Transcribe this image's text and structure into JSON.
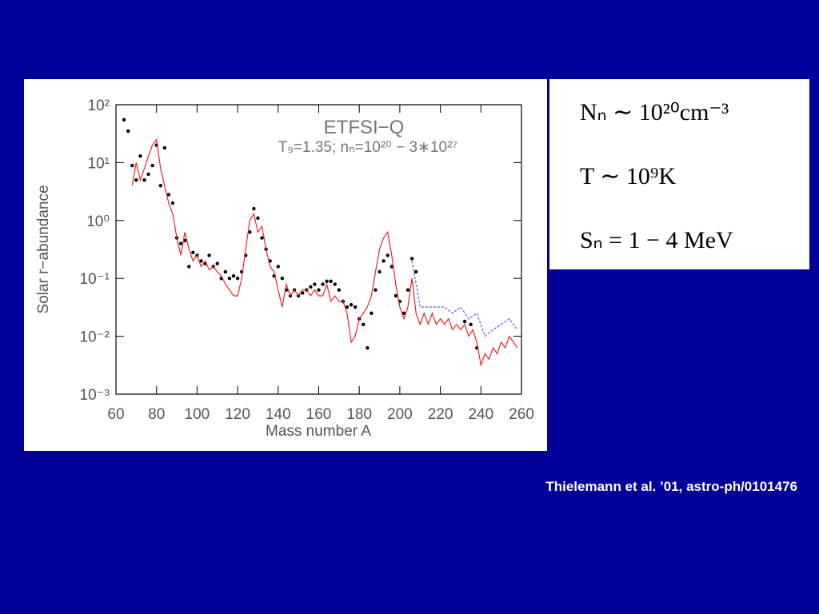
{
  "chart_data": {
    "type": "line",
    "title": "ETFSI−Q",
    "subtitle": "T₉=1.35;  nₙ=10²⁰  −  3∗10²⁷",
    "x_label": "Mass number A",
    "y_label": "Solar r−abundance",
    "xlim": [
      60,
      260
    ],
    "xticks": [
      60,
      80,
      100,
      120,
      140,
      160,
      180,
      200,
      220,
      240,
      260
    ],
    "ylim": [
      0.001,
      100
    ],
    "ylog": true,
    "yticks": [
      {
        "value": 100,
        "label": "10²"
      },
      {
        "value": 10,
        "label": "10¹"
      },
      {
        "value": 1,
        "label": "10⁰"
      },
      {
        "value": 0.1,
        "label": "10⁻¹"
      },
      {
        "value": 0.01,
        "label": "10⁻²"
      },
      {
        "value": 0.001,
        "label": "10⁻³"
      }
    ],
    "grid": false,
    "series": [
      {
        "style": "points",
        "color": "#000000",
        "x": [
          64,
          66,
          68,
          70,
          72,
          74,
          76,
          78,
          80,
          82,
          84,
          86,
          88,
          90,
          92,
          94,
          96,
          98,
          100,
          102,
          104,
          106,
          108,
          110,
          112,
          114,
          116,
          118,
          120,
          122,
          124,
          126,
          128,
          130,
          132,
          134,
          136,
          138,
          140,
          142,
          144,
          146,
          148,
          150,
          152,
          154,
          156,
          158,
          160,
          162,
          164,
          166,
          168,
          170,
          172,
          174,
          176,
          178,
          180,
          182,
          184,
          186,
          188,
          190,
          192,
          194,
          196,
          198,
          200,
          202,
          204,
          206,
          208,
          232,
          235,
          238
        ],
        "values": [
          55,
          35,
          8.9,
          5.0,
          13,
          5.0,
          6.3,
          8.9,
          20,
          4.0,
          18,
          2.8,
          2.0,
          0.5,
          0.4,
          0.45,
          0.16,
          0.28,
          0.25,
          0.2,
          0.18,
          0.25,
          0.16,
          0.18,
          0.1,
          0.13,
          0.1,
          0.11,
          0.1,
          0.13,
          0.25,
          0.63,
          1.6,
          1.1,
          0.5,
          0.32,
          0.2,
          0.11,
          0.16,
          0.1,
          0.063,
          0.05,
          0.063,
          0.05,
          0.056,
          0.063,
          0.071,
          0.079,
          0.063,
          0.079,
          0.089,
          0.089,
          0.079,
          0.063,
          0.04,
          0.032,
          0.035,
          0.032,
          0.02,
          0.016,
          0.0063,
          0.025,
          0.063,
          0.13,
          0.2,
          0.25,
          0.16,
          0.05,
          0.04,
          0.025,
          0.063,
          0.22,
          0.13,
          0.018,
          0.016,
          0.0063
        ]
      },
      {
        "style": "line",
        "color": "#e8262a",
        "x": [
          68,
          70,
          72,
          74,
          76,
          78,
          80,
          82,
          84,
          86,
          88,
          90,
          92,
          94,
          96,
          98,
          100,
          102,
          104,
          106,
          108,
          110,
          112,
          114,
          116,
          118,
          120,
          122,
          124,
          126,
          128,
          130,
          132,
          134,
          136,
          138,
          140,
          142,
          144,
          146,
          148,
          150,
          152,
          154,
          156,
          158,
          160,
          162,
          164,
          166,
          168,
          170,
          172,
          174,
          176,
          178,
          180,
          182,
          184,
          186,
          188,
          190,
          192,
          194,
          196,
          198,
          200,
          202,
          204,
          206,
          208,
          210,
          212,
          214,
          216,
          218,
          220,
          222,
          224,
          226,
          228,
          230,
          232,
          234,
          236,
          238,
          240,
          242,
          244,
          246,
          248,
          250,
          252,
          254,
          256,
          258
        ],
        "values": [
          4.0,
          10,
          5.0,
          7.9,
          13,
          20,
          25,
          7.9,
          4.0,
          2.0,
          1.3,
          0.5,
          0.25,
          0.63,
          0.32,
          0.2,
          0.25,
          0.16,
          0.2,
          0.14,
          0.16,
          0.13,
          0.11,
          0.079,
          0.063,
          0.05,
          0.05,
          0.1,
          0.32,
          1,
          1.3,
          0.63,
          0.79,
          0.32,
          0.16,
          0.13,
          0.063,
          0.032,
          0.079,
          0.05,
          0.063,
          0.05,
          0.063,
          0.063,
          0.05,
          0.063,
          0.05,
          0.05,
          0.079,
          0.04,
          0.05,
          0.04,
          0.04,
          0.025,
          0.0079,
          0.01,
          0.02,
          0.025,
          0.032,
          0.05,
          0.13,
          0.32,
          0.5,
          0.63,
          0.25,
          0.079,
          0.032,
          0.02,
          0.032,
          0.1,
          0.025,
          0.016,
          0.025,
          0.016,
          0.025,
          0.016,
          0.02,
          0.016,
          0.02,
          0.013,
          0.016,
          0.013,
          0.016,
          0.01,
          0.013,
          0.0079,
          0.0032,
          0.005,
          0.004,
          0.0063,
          0.005,
          0.0079,
          0.0063,
          0.01,
          0.0079,
          0.0063
        ]
      },
      {
        "style": "dotted",
        "color": "#4a5cff",
        "x": [
          206,
          210,
          214,
          218,
          222,
          226,
          230,
          234,
          238,
          242,
          246,
          250,
          254,
          258
        ],
        "values": [
          0.2,
          0.032,
          0.032,
          0.032,
          0.032,
          0.025,
          0.032,
          0.02,
          0.025,
          0.01,
          0.013,
          0.016,
          0.02,
          0.013
        ]
      }
    ]
  },
  "equations": [
    "Nₙ ∼ 10²⁰cm⁻³",
    "T ∼ 10⁹K",
    "Sₙ  =  1 − 4 MeV"
  ],
  "citation": "Thielemann et al. ’01, astro-ph/0101476"
}
